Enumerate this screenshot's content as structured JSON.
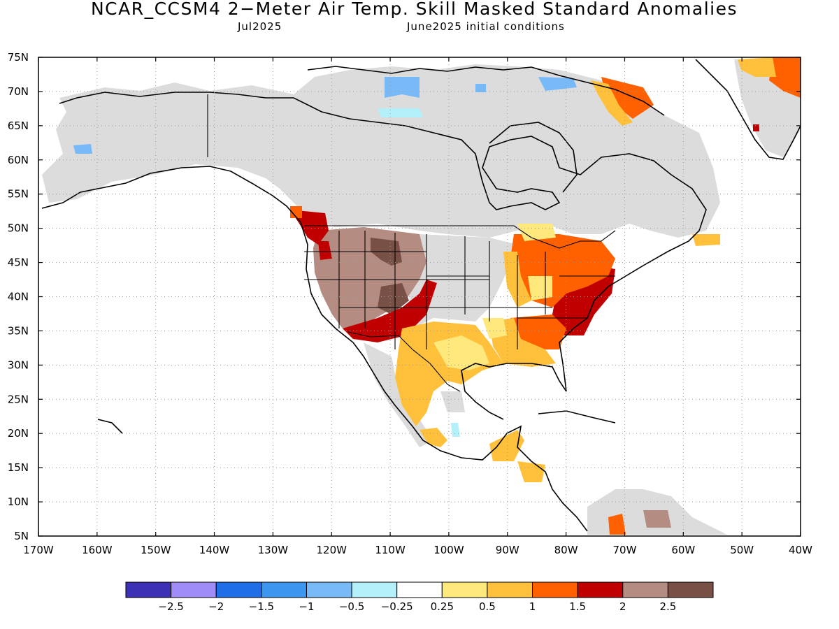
{
  "title": "NCAR_CCSM4 2−Meter Air Temp. Skill Masked Standard Anomalies",
  "subtitle_left": "Jul2025",
  "subtitle_right": "June2025 initial conditions",
  "map": {
    "lon_range": [
      -170,
      -40
    ],
    "lat_range": [
      5,
      75
    ],
    "lat_ticks": [
      "75N",
      "70N",
      "65N",
      "60N",
      "55N",
      "50N",
      "45N",
      "40N",
      "35N",
      "30N",
      "25N",
      "20N",
      "15N",
      "10N",
      "5N"
    ],
    "lon_ticks": [
      "170W",
      "160W",
      "150W",
      "140W",
      "130W",
      "120W",
      "110W",
      "100W",
      "90W",
      "80W",
      "70W",
      "60W",
      "50W",
      "40W"
    ],
    "grid": "dotted",
    "masked_color": "#dcdcdc",
    "land_outline_color": "#000000"
  },
  "colorbar": {
    "colors": [
      "#3c30b4",
      "#a08cf8",
      "#1f6ee8",
      "#3c96f0",
      "#78b9f8",
      "#b4f0fa",
      "#ffffff",
      "#ffe87c",
      "#ffc03c",
      "#ff6000",
      "#c00000",
      "#b48c82",
      "#785046"
    ],
    "labels": [
      "−2.5",
      "−2",
      "−1.5",
      "−1",
      "−0.5",
      "−0.25",
      "0.25",
      "0.5",
      "1",
      "1.5",
      "2",
      "2.5"
    ]
  }
}
